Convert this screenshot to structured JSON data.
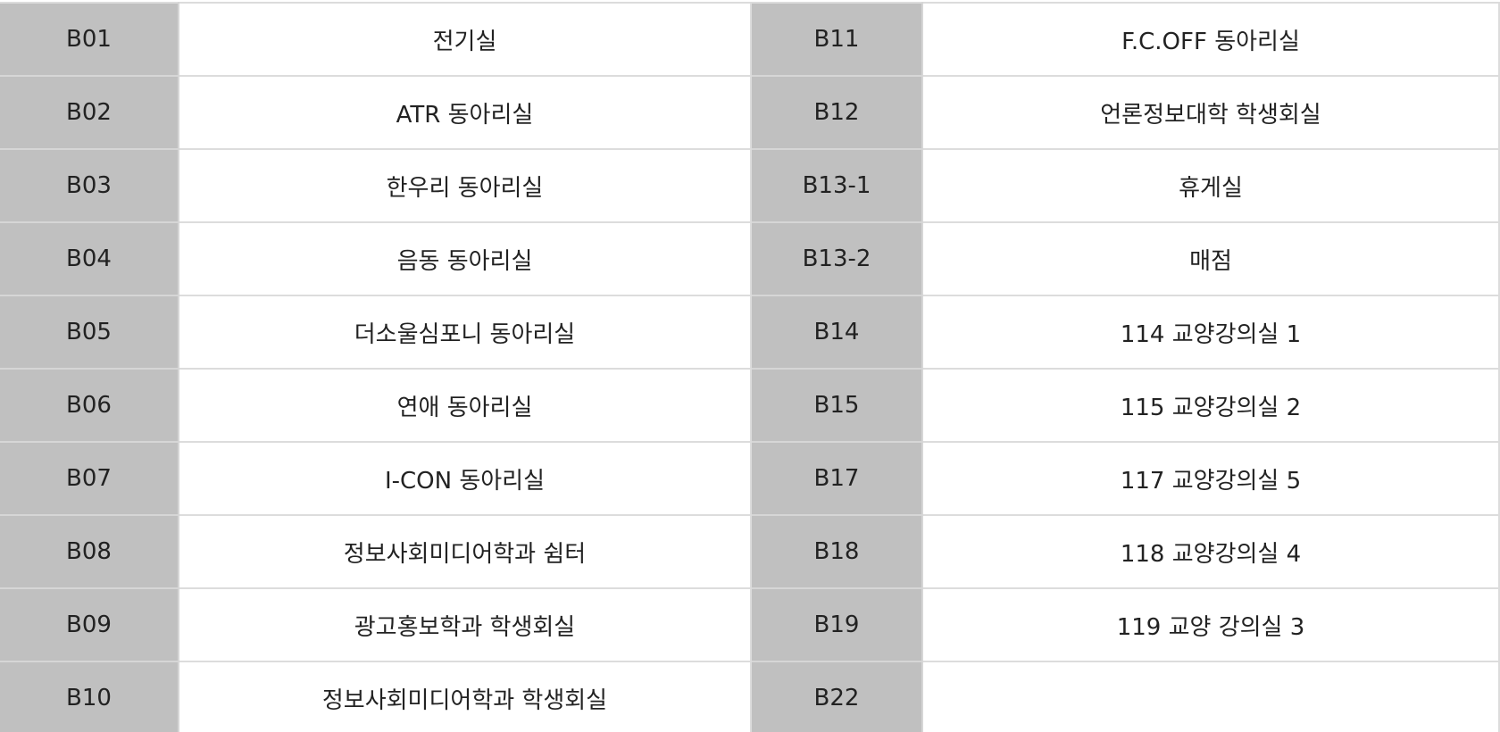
{
  "rooms": {
    "rows": [
      {
        "left_code": "B01",
        "left_name": "전기실",
        "right_code": "B11",
        "right_name": "F.C.OFF 동아리실"
      },
      {
        "left_code": "B02",
        "left_name": "ATR 동아리실",
        "right_code": "B12",
        "right_name": "언론정보대학 학생회실"
      },
      {
        "left_code": "B03",
        "left_name": "한우리 동아리실",
        "right_code": "B13-1",
        "right_name": "휴게실"
      },
      {
        "left_code": "B04",
        "left_name": "음동 동아리실",
        "right_code": "B13-2",
        "right_name": "매점"
      },
      {
        "left_code": "B05",
        "left_name": "더소울심포니 동아리실",
        "right_code": "B14",
        "right_name": "114 교양강의실 1"
      },
      {
        "left_code": "B06",
        "left_name": "연애 동아리실",
        "right_code": "B15",
        "right_name": "115 교양강의실 2"
      },
      {
        "left_code": "B07",
        "left_name": "I-CON 동아리실",
        "right_code": "B17",
        "right_name": "117 교양강의실 5"
      },
      {
        "left_code": "B08",
        "left_name": "정보사회미디어학과 쉼터",
        "right_code": "B18",
        "right_name": "118 교양강의실 4"
      },
      {
        "left_code": "B09",
        "left_name": "광고홍보학과 학생회실",
        "right_code": "B19",
        "right_name": "119 교양 강의실 3"
      },
      {
        "left_code": "B10",
        "left_name": "정보사회미디어학과 학생회실",
        "right_code": "B22",
        "right_name": ""
      }
    ]
  },
  "colors": {
    "code_cell_bg": "#c0c0c0",
    "name_cell_bg": "#ffffff",
    "border": "#dcdcdc",
    "text": "#222222"
  }
}
